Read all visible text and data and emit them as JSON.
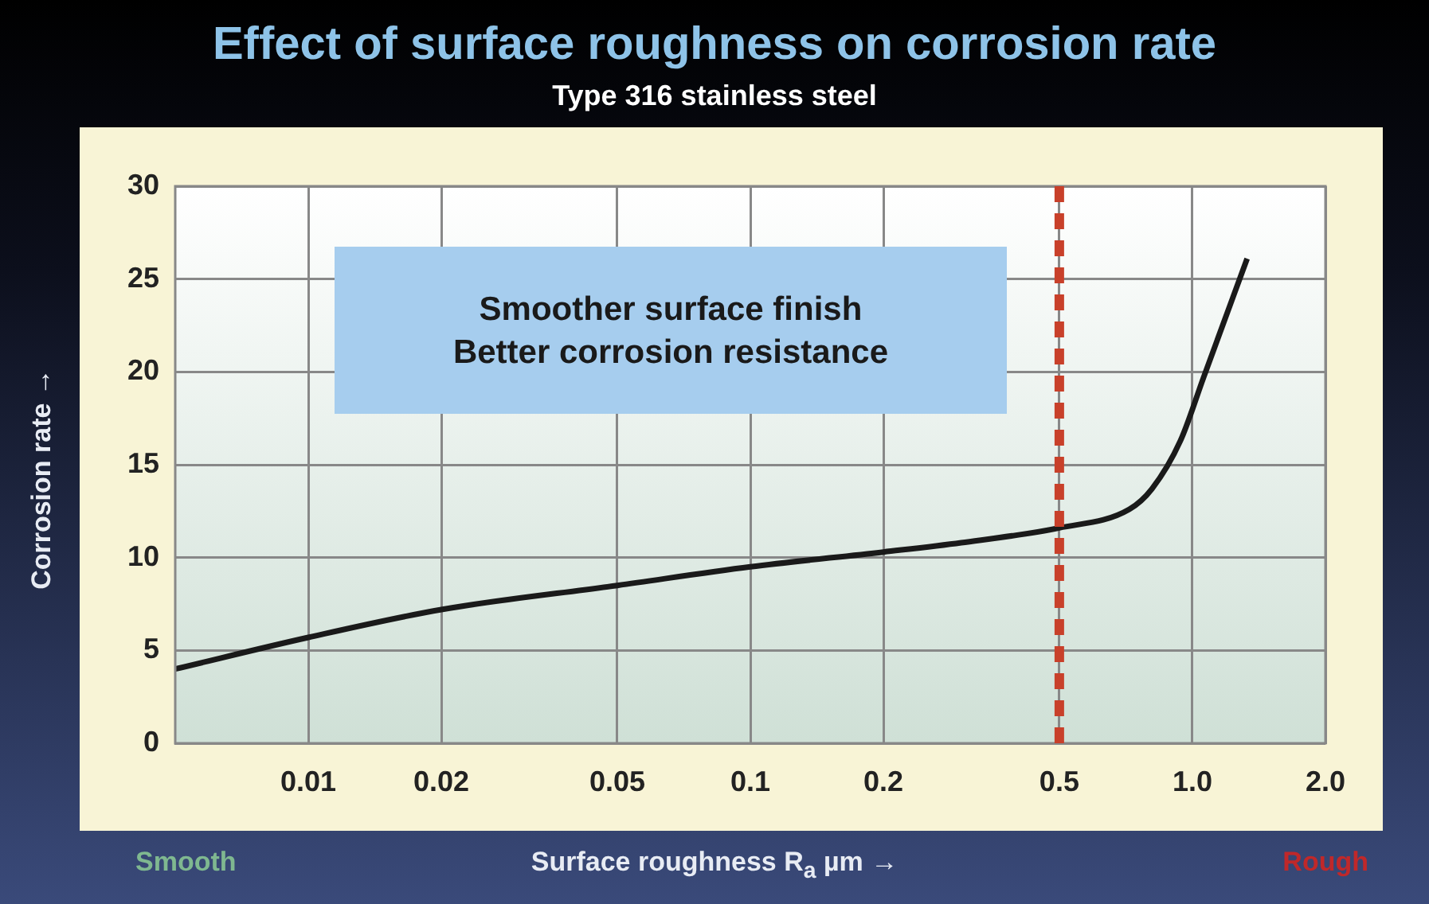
{
  "chart_data": {
    "type": "line",
    "title": "Effect of surface roughness on corrosion rate",
    "subtitle": "Type 316 stainless steel",
    "xlabel": "Surface roughness R$_{a}$ µm →",
    "ylabel": "Corrosion rate →",
    "x": [
      0.005,
      0.01,
      0.02,
      0.05,
      0.1,
      0.2,
      0.3,
      0.5,
      0.72,
      0.81,
      0.94,
      1.06,
      1.33
    ],
    "series": [
      {
        "color": "#1a1a1a",
        "values": [
          4.0,
          5.7,
          7.2,
          8.5,
          9.5,
          10.3,
          10.8,
          11.6,
          12.6,
          13.7,
          16.3,
          19.7,
          26.1
        ]
      }
    ],
    "xlim": [
      0.005,
      2
    ],
    "xticks": [
      0.01,
      0.02,
      0.05,
      0.1,
      0.2,
      0.5,
      {
        "value": 1,
        "label": "1.0"
      },
      {
        "value": 2,
        "label": "2.0"
      }
    ],
    "ylim": [
      0,
      30
    ],
    "yticks": [
      0,
      5,
      10,
      15,
      20,
      25,
      30
    ],
    "log": "x",
    "grid": true,
    "marker": "none",
    "line_style": "solid",
    "legend": false,
    "ref_lines": [
      {
        "axis": "x",
        "value": 0.5,
        "color": "#c8402a",
        "line_style": "dashed"
      }
    ],
    "annotations": [
      "Smoother surface finish\nBetter corrosion resistance",
      "Smooth",
      "Rough"
    ]
  }
}
